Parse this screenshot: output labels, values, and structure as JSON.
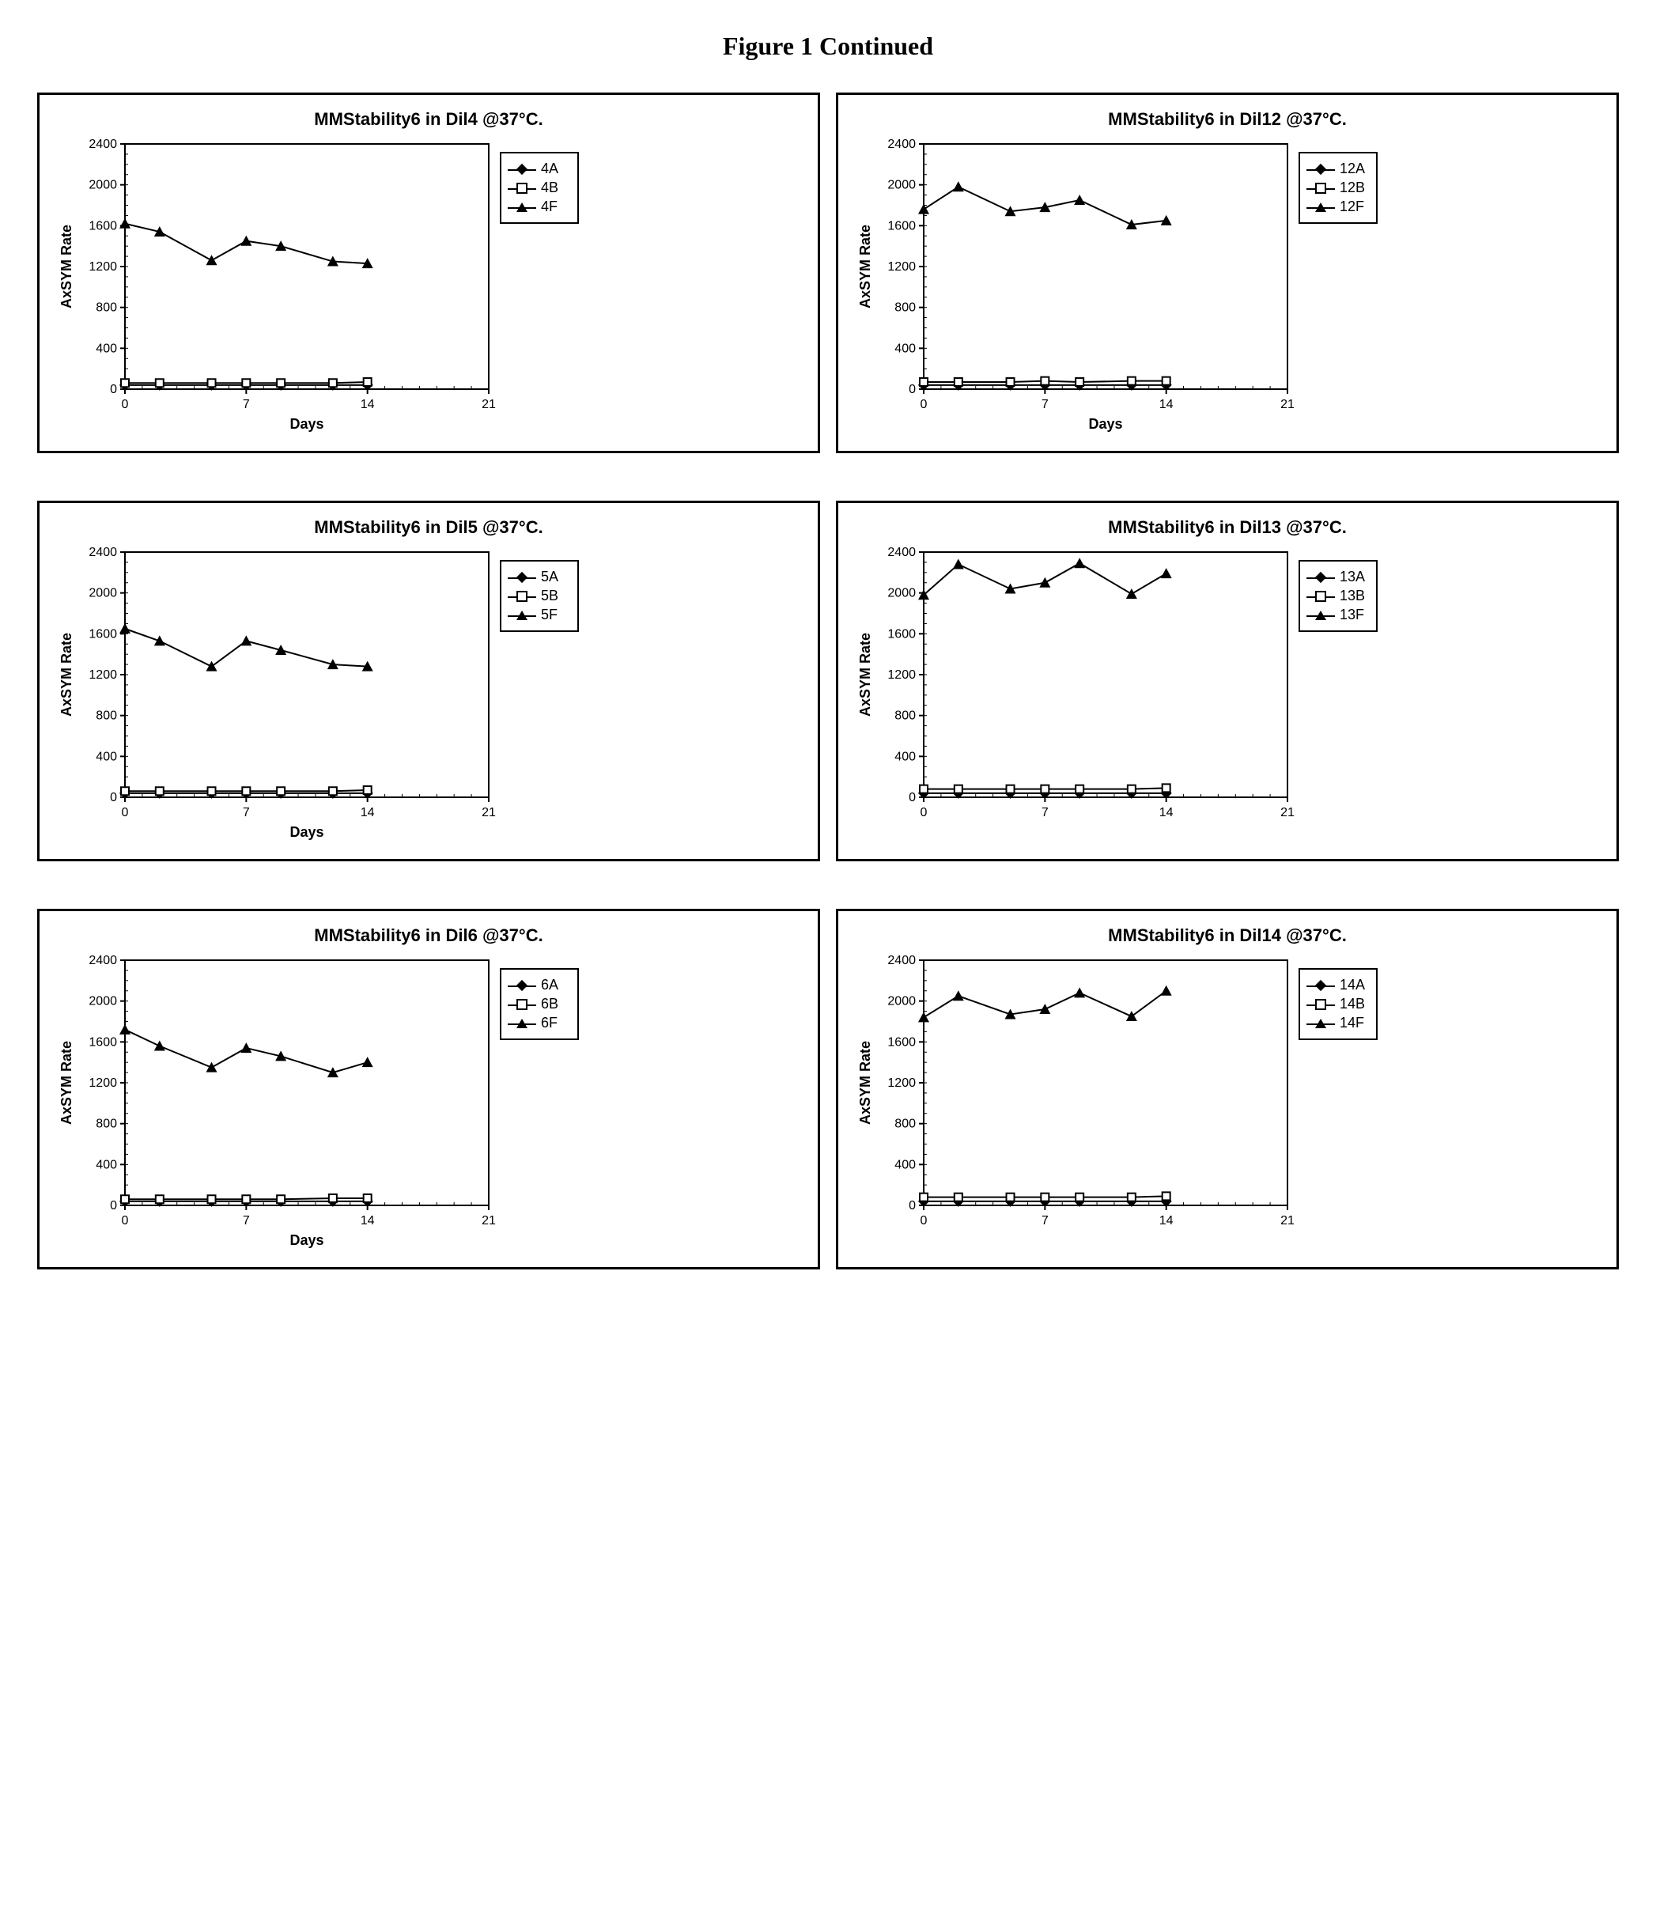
{
  "page_title": "Figure 1 Continued",
  "xlabel": "Days",
  "ylabel": "AxSYM Rate",
  "xlim": [
    0,
    21
  ],
  "xticks": [
    0,
    7,
    14,
    21
  ],
  "ylim": [
    0,
    2400
  ],
  "yticks": [
    0,
    400,
    800,
    1200,
    1600,
    2000,
    2400
  ],
  "xdata": [
    0,
    2,
    5,
    7,
    9,
    12,
    14
  ],
  "axis_fontsize": 18,
  "tick_fontsize": 16,
  "line_color": "#000000",
  "line_width": 2,
  "plot_bg": "#ffffff",
  "grid_color": "#cccccc",
  "marker_fill_open": "#ffffff",
  "marker_fill_solid": "#000000",
  "panels": [
    {
      "id": "dil4",
      "title": "MMStability6 in Dil4 @37°C.",
      "show_xlabel": true,
      "legend": [
        "4A",
        "4B",
        "4F"
      ],
      "series": [
        {
          "name": "4A",
          "marker": "diamond",
          "y": [
            40,
            40,
            40,
            40,
            40,
            40,
            40
          ]
        },
        {
          "name": "4B",
          "marker": "square",
          "y": [
            60,
            60,
            60,
            60,
            60,
            60,
            70
          ]
        },
        {
          "name": "4F",
          "marker": "triangle",
          "y": [
            1620,
            1540,
            1260,
            1450,
            1400,
            1250,
            1230
          ]
        }
      ]
    },
    {
      "id": "dil12",
      "title": "MMStability6 in Dil12 @37°C.",
      "show_xlabel": true,
      "legend": [
        "12A",
        "12B",
        "12F"
      ],
      "series": [
        {
          "name": "12A",
          "marker": "diamond",
          "y": [
            40,
            40,
            40,
            40,
            40,
            40,
            40
          ]
        },
        {
          "name": "12B",
          "marker": "square",
          "y": [
            70,
            70,
            70,
            80,
            70,
            80,
            80
          ]
        },
        {
          "name": "12F",
          "marker": "triangle",
          "y": [
            1760,
            1980,
            1740,
            1780,
            1850,
            1610,
            1650
          ]
        }
      ]
    },
    {
      "id": "dil5",
      "title": "MMStability6 in Dil5 @37°C.",
      "show_xlabel": true,
      "legend": [
        "5A",
        "5B",
        "5F"
      ],
      "series": [
        {
          "name": "5A",
          "marker": "diamond",
          "y": [
            40,
            40,
            40,
            40,
            40,
            40,
            40
          ]
        },
        {
          "name": "5B",
          "marker": "square",
          "y": [
            60,
            60,
            60,
            60,
            60,
            60,
            70
          ]
        },
        {
          "name": "5F",
          "marker": "triangle",
          "y": [
            1650,
            1530,
            1280,
            1530,
            1440,
            1300,
            1280
          ]
        }
      ]
    },
    {
      "id": "dil13",
      "title": "MMStability6 in Dil13 @37°C.",
      "show_xlabel": false,
      "legend": [
        "13A",
        "13B",
        "13F"
      ],
      "series": [
        {
          "name": "13A",
          "marker": "diamond",
          "y": [
            40,
            40,
            40,
            40,
            40,
            40,
            40
          ]
        },
        {
          "name": "13B",
          "marker": "square",
          "y": [
            80,
            80,
            80,
            80,
            80,
            80,
            90
          ]
        },
        {
          "name": "13F",
          "marker": "triangle",
          "y": [
            1980,
            2280,
            2040,
            2100,
            2290,
            1990,
            2190
          ]
        }
      ]
    },
    {
      "id": "dil6",
      "title": "MMStability6 in Dil6 @37°C.",
      "show_xlabel": true,
      "legend": [
        "6A",
        "6B",
        "6F"
      ],
      "series": [
        {
          "name": "6A",
          "marker": "diamond",
          "y": [
            40,
            40,
            40,
            40,
            40,
            40,
            40
          ]
        },
        {
          "name": "6B",
          "marker": "square",
          "y": [
            60,
            60,
            60,
            60,
            60,
            70,
            70
          ]
        },
        {
          "name": "6F",
          "marker": "triangle",
          "y": [
            1720,
            1560,
            1350,
            1540,
            1460,
            1300,
            1400
          ]
        }
      ]
    },
    {
      "id": "dil14",
      "title": "MMStability6 in Dil14 @37°C.",
      "show_xlabel": false,
      "legend": [
        "14A",
        "14B",
        "14F"
      ],
      "series": [
        {
          "name": "14A",
          "marker": "diamond",
          "y": [
            40,
            40,
            40,
            40,
            40,
            40,
            40
          ]
        },
        {
          "name": "14B",
          "marker": "square",
          "y": [
            80,
            80,
            80,
            80,
            80,
            80,
            90
          ]
        },
        {
          "name": "14F",
          "marker": "triangle",
          "y": [
            1840,
            2050,
            1870,
            1920,
            2080,
            1850,
            2100
          ]
        }
      ]
    }
  ]
}
